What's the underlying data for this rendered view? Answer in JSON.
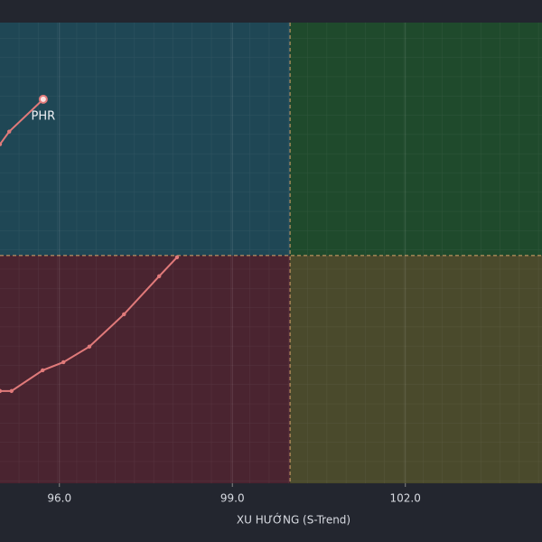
{
  "chart_data": {
    "type": "line",
    "x_label": "XU HƯỚNG (S-Trend)",
    "xlim": [
      94.97,
      104.37
    ],
    "ylim": [
      96.05,
      104.04
    ],
    "xticks": [
      {
        "value": 96,
        "label": "96.0"
      },
      {
        "value": 99,
        "label": "99.0"
      },
      {
        "value": 102,
        "label": "102.0"
      }
    ],
    "reference": {
      "x": 100,
      "y": 100
    },
    "quadrant_colors": [
      "#1f4755",
      "#1f4a2c",
      "#4a2430",
      "#4a4a2c"
    ],
    "grid": true,
    "series": [
      {
        "name": "PHR",
        "color": "#e07a7a",
        "x": [
          94.97,
          95.13,
          95.72
        ],
        "values": [
          101.93,
          102.15,
          102.71
        ]
      },
      {
        "color": "#e07a7a",
        "x": [
          94.97,
          95.17,
          95.71,
          96.07,
          96.52,
          97.12,
          97.73,
          98.04
        ],
        "values": [
          97.65,
          97.65,
          98.01,
          98.15,
          98.42,
          98.98,
          99.64,
          99.97
        ]
      }
    ]
  }
}
